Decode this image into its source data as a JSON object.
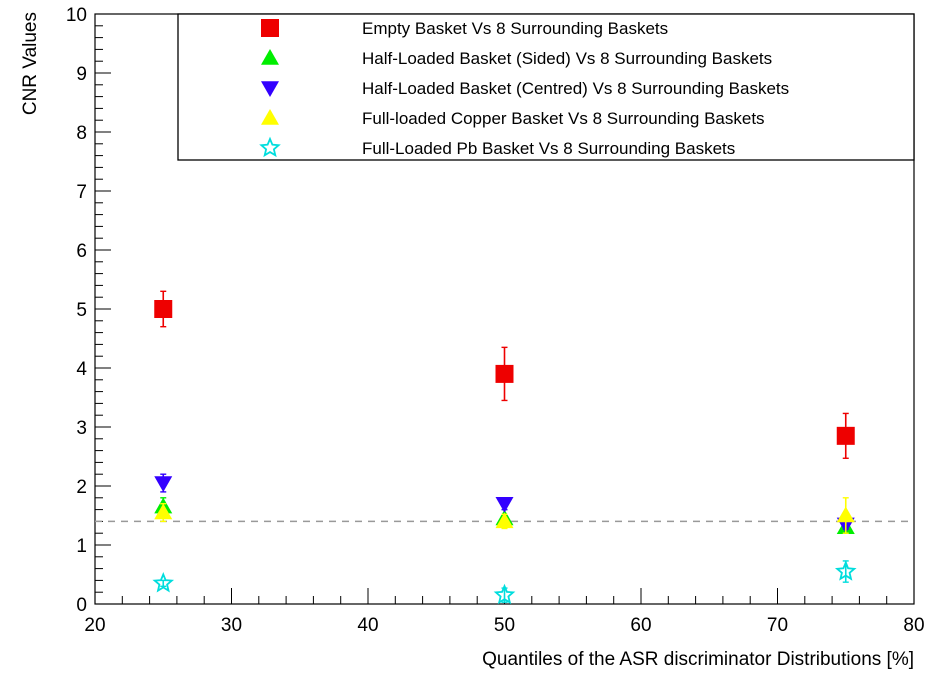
{
  "chart_data": {
    "type": "scatter",
    "xlabel": "Quantiles of the ASR discriminator Distributions [%]",
    "ylabel": "CNR Values",
    "xlim": [
      20,
      80
    ],
    "ylim": [
      0,
      10
    ],
    "x_ticks": [
      20,
      30,
      40,
      50,
      60,
      70,
      80
    ],
    "y_ticks": [
      0,
      1,
      2,
      3,
      4,
      5,
      6,
      7,
      8,
      9,
      10
    ],
    "grid": false,
    "legend_position": "top-right",
    "reference_line": {
      "y": 1.4,
      "style": "dashed",
      "color": "#999999"
    },
    "series": [
      {
        "name": "Empty Basket Vs 8 Surrounding Baskets",
        "marker": "square",
        "color": "#ee0000",
        "x": [
          25,
          50,
          75
        ],
        "y": [
          5.0,
          3.9,
          2.85
        ],
        "err": [
          0.3,
          0.45,
          0.38
        ]
      },
      {
        "name": "Half-Loaded Basket (Sided) Vs 8 Surrounding Baskets",
        "marker": "triangle-up",
        "color": "#00ee00",
        "x": [
          25,
          50,
          75
        ],
        "y": [
          1.65,
          1.45,
          1.3
        ],
        "err": [
          0.15,
          0.15,
          0.08
        ]
      },
      {
        "name": "Half-Loaded Basket (Centred) Vs 8 Surrounding Baskets",
        "marker": "triangle-down",
        "color": "#3300ff",
        "x": [
          25,
          50,
          75
        ],
        "y": [
          2.05,
          1.7,
          1.35
        ],
        "err": [
          0.15,
          0.1,
          0.08
        ]
      },
      {
        "name": "Full-loaded Copper Basket Vs 8 Surrounding Baskets",
        "marker": "triangle-up",
        "color": "#ffff00",
        "x": [
          25,
          50,
          75
        ],
        "y": [
          1.55,
          1.4,
          1.5
        ],
        "err": [
          0.15,
          0.12,
          0.3
        ]
      },
      {
        "name": "Full-Loaded Pb Basket Vs 8 Surrounding Baskets",
        "marker": "star-open",
        "color": "#00dddd",
        "x": [
          25,
          50,
          75
        ],
        "y": [
          0.35,
          0.15,
          0.55
        ],
        "err": [
          0.05,
          0.12,
          0.18
        ]
      }
    ]
  }
}
